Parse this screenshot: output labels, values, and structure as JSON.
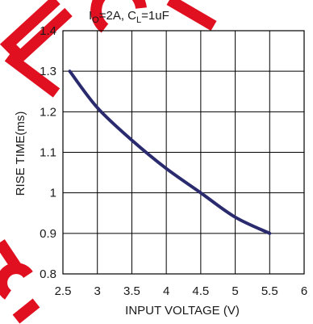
{
  "chart_data": {
    "type": "line",
    "title_parts": [
      "I",
      "O",
      "=2A, C",
      "L",
      "=1uF"
    ],
    "xlabel": "INPUT VOLTAGE (V)",
    "ylabel": "RISE TIME(ms)",
    "xlim": [
      2.5,
      6
    ],
    "ylim": [
      0.8,
      1.4
    ],
    "xticks": [
      "2.5",
      "3",
      "3.5",
      "4",
      "4.5",
      "5",
      "5.5",
      "6"
    ],
    "yticks": [
      "0.8",
      "0.9",
      "1",
      "1.1",
      "1.2",
      "1.3",
      "1.4"
    ],
    "grid": true,
    "series": [
      {
        "x": [
          2.6,
          3.0,
          3.5,
          4.0,
          4.5,
          5.0,
          5.5
        ],
        "y": [
          1.3,
          1.21,
          1.13,
          1.06,
          1.0,
          0.94,
          0.9
        ]
      }
    ],
    "colors": {
      "line": "#2a2a6e",
      "grid": "#000000",
      "watermark": "#e01020"
    }
  }
}
